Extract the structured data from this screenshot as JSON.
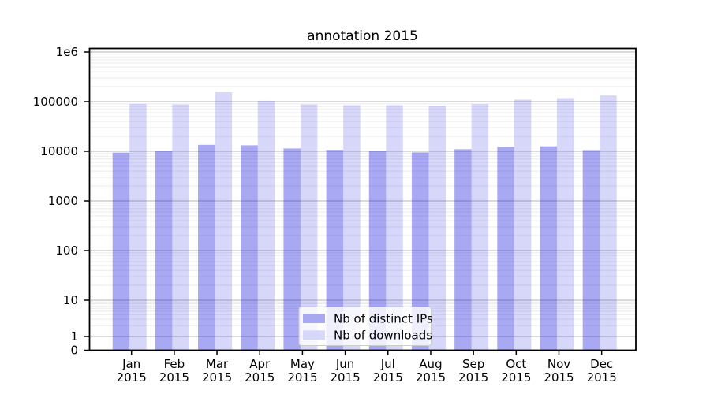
{
  "chart_data": {
    "type": "bar",
    "title": "annotation 2015",
    "categories": [
      "Jan 2015",
      "Feb 2015",
      "Mar 2015",
      "Apr 2015",
      "May 2015",
      "Jun 2015",
      "Jul 2015",
      "Aug 2015",
      "Sep 2015",
      "Oct 2015",
      "Nov 2015",
      "Dec 2015"
    ],
    "series": [
      {
        "name": "Nb of distinct IPs",
        "values": [
          9400,
          10000,
          13500,
          13200,
          11400,
          10700,
          10000,
          9500,
          11000,
          12300,
          12600,
          10600
        ],
        "color": "#a8a8f2",
        "fill": "rgba(0,0,220,0.34)"
      },
      {
        "name": "Nb of downloads",
        "values": [
          90000,
          88000,
          155000,
          104000,
          88000,
          85000,
          85000,
          83000,
          89000,
          110000,
          118000,
          133000
        ],
        "color": "#d7d7f9",
        "fill": "rgba(0,0,220,0.155)"
      }
    ],
    "yscale": "log with zero baseline (symlog-style)",
    "ytick_labels": [
      "1e6",
      "100000",
      "10000",
      "1000",
      "100",
      "10",
      "1",
      "0"
    ],
    "ytick_values": [
      1000000,
      100000,
      10000,
      1000,
      100,
      10,
      1,
      0
    ],
    "ylim": [
      0,
      1200000
    ],
    "xlabel": "",
    "ylabel": "",
    "grid": "horizontal major and minor gridlines",
    "legend_position": "lower center inside plot",
    "colors": {
      "major_grid": "#b5b5b5",
      "minor_grid": "#ebebeb",
      "spine": "#000000",
      "background": "#ffffff",
      "legend_border": "#cccccc",
      "legend_bg": "rgba(255,255,255,0.8)"
    }
  }
}
